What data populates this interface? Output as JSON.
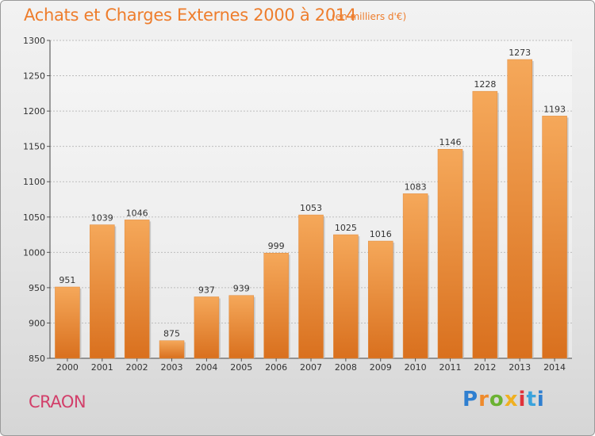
{
  "header": {
    "title": "Achats et Charges Externes 2000 à 2014",
    "subtitle": "(en milliers d'€)"
  },
  "footer": {
    "place": "CRAON",
    "logo_text": "Proxiti"
  },
  "colors": {
    "accent": "#ee7d2c",
    "bar_light": "#f5a85a",
    "bar_dark": "#d9701e",
    "place_text": "#d23f6a"
  },
  "chart_data": {
    "type": "bar",
    "title": "Achats et Charges Externes 2000 à 2014",
    "subtitle": "(en milliers d'€)",
    "categories": [
      "2000",
      "2001",
      "2002",
      "2003",
      "2004",
      "2005",
      "2006",
      "2007",
      "2008",
      "2009",
      "2010",
      "2011",
      "2012",
      "2013",
      "2014"
    ],
    "values": [
      951,
      1039,
      1046,
      875,
      937,
      939,
      999,
      1053,
      1025,
      1016,
      1083,
      1146,
      1228,
      1273,
      1193
    ],
    "ylim": [
      850,
      1300
    ],
    "yticks": [
      850,
      900,
      950,
      1000,
      1050,
      1100,
      1150,
      1200,
      1250,
      1300
    ],
    "grid": true,
    "data_labels": true
  }
}
